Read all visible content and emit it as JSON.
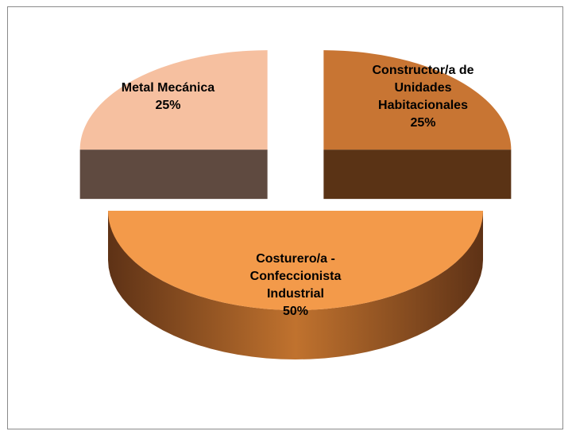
{
  "chart_data": {
    "type": "pie3d",
    "categories": [
      "Constructor/a de Unidades Habitacionales",
      "Costurero/a - Confeccionista Industrial",
      "Metal Mecánica"
    ],
    "values": [
      25,
      50,
      25
    ],
    "value_labels": [
      "25%",
      "50%",
      "25%"
    ],
    "colors": [
      "#c87533",
      "#f39a4a",
      "#f6c0a0"
    ],
    "side_colors": [
      "#5a3315",
      "#8a4a1e",
      "#5f4a40"
    ]
  }
}
